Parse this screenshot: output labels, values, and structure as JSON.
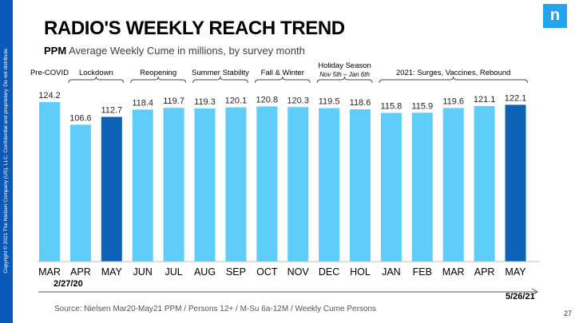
{
  "slide": {
    "copyright": "Copyright © 2021 The Nielsen Company (US), LLC. Confidential and proprietary. Do not distribute.",
    "logo_letter": "n",
    "title": "RADIO'S WEEKLY REACH TREND",
    "subtitle_bold": "PPM",
    "subtitle_rest": " Average Weekly Cume in millions, by survey month",
    "start_date": "2/27/20",
    "end_date": "5/26/21",
    "source": "Source: Nielsen Mar20-May21 PPM / Persons 12+ / M-Su 6a-12M / Weekly Cume Persons",
    "page_number": "27"
  },
  "colors": {
    "bar_light": "#5ecdfa",
    "bar_dark": "#0b62b6",
    "brand_blue": "#0a59b8",
    "logo_blue": "#24a3ee"
  },
  "chart_data": {
    "type": "bar",
    "categories": [
      "MAR",
      "APR",
      "MAY",
      "JUN",
      "JUL",
      "AUG",
      "SEP",
      "OCT",
      "NOV",
      "DEC",
      "HOL",
      "JAN",
      "FEB",
      "MAR",
      "APR",
      "MAY"
    ],
    "values": [
      124.2,
      106.6,
      112.7,
      118.4,
      119.7,
      119.3,
      120.1,
      120.8,
      120.3,
      119.5,
      118.6,
      115.8,
      115.9,
      119.6,
      121.1,
      122.1
    ],
    "highlighted": [
      2,
      15
    ],
    "ylim": [
      0,
      124.2
    ],
    "grid": false,
    "groups": [
      {
        "label": "Pre-COVID",
        "sublabel": "",
        "start": 0,
        "end": 0
      },
      {
        "label": "Lockdown",
        "sublabel": "",
        "start": 1,
        "end": 2
      },
      {
        "label": "Reopening",
        "sublabel": "",
        "start": 3,
        "end": 4
      },
      {
        "label": "Summer Stability",
        "sublabel": "",
        "start": 5,
        "end": 6
      },
      {
        "label": "Fall & Winter",
        "sublabel": "",
        "start": 7,
        "end": 8
      },
      {
        "label": "Holiday Season",
        "sublabel": "Nov 5th – Jan 6th",
        "start": 9,
        "end": 10
      },
      {
        "label": "2021: Surges, Vaccines, Rebound",
        "sublabel": "",
        "start": 11,
        "end": 15
      }
    ]
  }
}
